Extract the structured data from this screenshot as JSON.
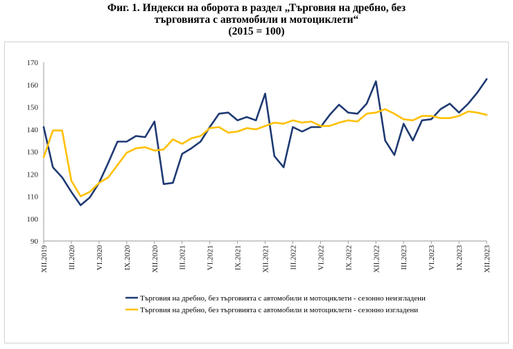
{
  "title_lines": [
    "Фиг. 1. Индекси на оборота в раздел „Търговия на дребно, без",
    "търговията с автомобили и мотоциклети“",
    "(2015 = 100)"
  ],
  "chart_data": {
    "type": "line",
    "title": "Фиг. 1. Индекси на оборота в раздел „Търговия на дребно, без търговията с автомобили и мотоциклети“ (2015 = 100)",
    "xlabel": "",
    "ylabel": "",
    "ylim": [
      90,
      170
    ],
    "yticks": [
      90,
      100,
      110,
      120,
      130,
      140,
      150,
      160,
      170
    ],
    "grid": "none",
    "legend_position": "bottom-center",
    "x": [
      "XII.2019",
      "I.2020",
      "II.2020",
      "III.2020",
      "IV.2020",
      "V.2020",
      "VI.2020",
      "VII.2020",
      "VIII.2020",
      "IX.2020",
      "X.2020",
      "XI.2020",
      "XII.2020",
      "I.2021",
      "II.2021",
      "III.2021",
      "IV.2021",
      "V.2021",
      "VI.2021",
      "VII.2021",
      "VIII.2021",
      "IX.2021",
      "X.2021",
      "XI.2021",
      "XII.2021",
      "I.2022",
      "II.2022",
      "III.2022",
      "IV.2022",
      "V.2022",
      "VI.2022",
      "VII.2022",
      "VIII.2022",
      "IX.2022",
      "X.2022",
      "XI.2022",
      "XII.2022",
      "I.2023",
      "II.2023",
      "III.2023",
      "IV.2023",
      "V.2023",
      "VI.2023",
      "VII.2023",
      "VIII.2023",
      "IX.2023",
      "X.2023",
      "XI.2023",
      "XII.2023"
    ],
    "tick_labels": [
      "XII.2019",
      "III.2020",
      "VI.2020",
      "IX.2020",
      "XII.2020",
      "III.2021",
      "VI.2021",
      "IX.2021",
      "XII.2021",
      "III.2022",
      "VI.2022",
      "IX.2022",
      "XII.2022",
      "III.2023",
      "VI.2023",
      "IX.2023",
      "XII.2023"
    ],
    "series": [
      {
        "name": "Търговия на дребно, без търговията с автомобили и мотоциклети - сезонно неизгладени",
        "color": "#1f3a73",
        "values": [
          141,
          123,
          118.5,
          112,
          106,
          109.5,
          116,
          125,
          134.5,
          134.5,
          137,
          136.5,
          143.5,
          115.5,
          116,
          129,
          131.5,
          134.5,
          141,
          147,
          147.5,
          144,
          145.5,
          144,
          156,
          128,
          123,
          141,
          139,
          141,
          141,
          146.5,
          151,
          147.5,
          147,
          151.5,
          161.5,
          135,
          128.5,
          142.5,
          135,
          144,
          144.5,
          149,
          151.5,
          147.5,
          151.5,
          156.5,
          162.5
        ]
      },
      {
        "name": "Търговия на дребно, без търговията с автомобили и мотоциклети - сезонно изгладени",
        "color": "#ffc000",
        "values": [
          127.5,
          139.5,
          139.5,
          117,
          110,
          112,
          116,
          118.5,
          124,
          129.5,
          131.5,
          132,
          130.5,
          131,
          135.5,
          133.5,
          136,
          137,
          140.5,
          141,
          138.5,
          139,
          140.5,
          140,
          141.5,
          143,
          142.5,
          144,
          143,
          143.5,
          141.5,
          141.5,
          143,
          144,
          143.5,
          147,
          147.5,
          149,
          147,
          144.5,
          144,
          146,
          146,
          145,
          145,
          146,
          148,
          147.5,
          146.5
        ]
      }
    ]
  }
}
